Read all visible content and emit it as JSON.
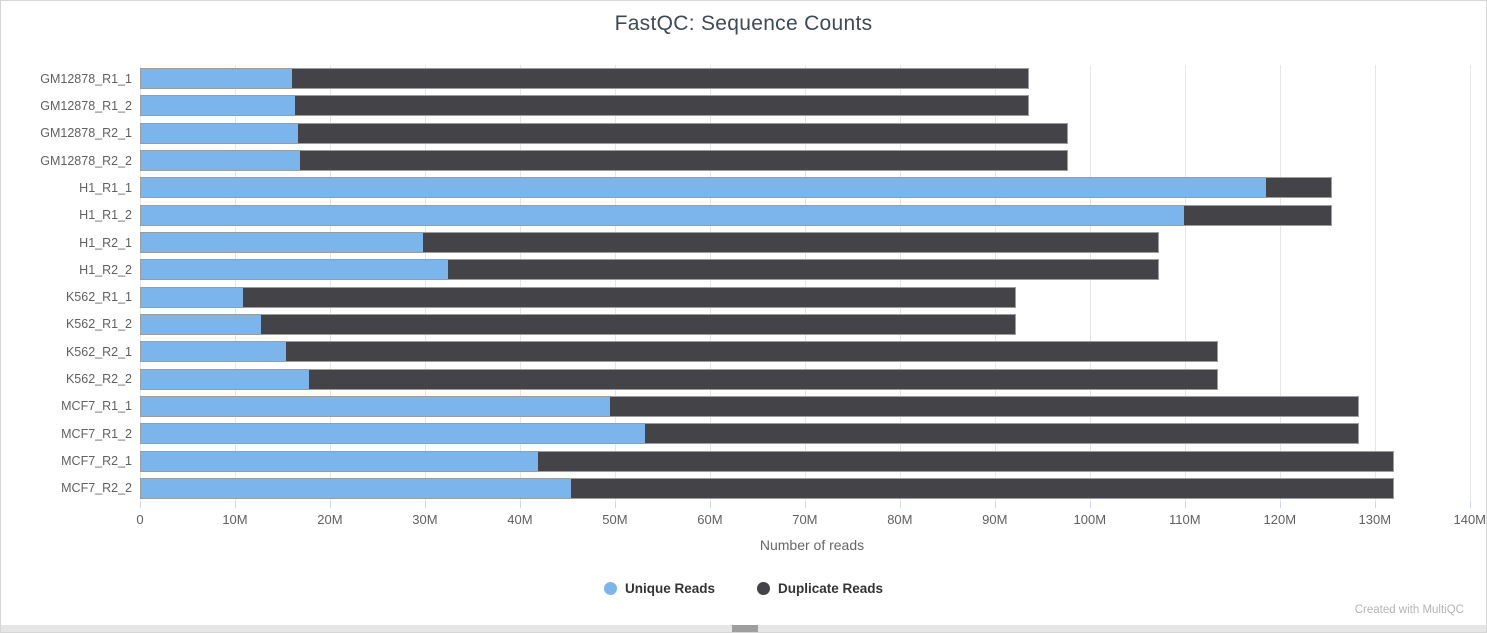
{
  "title": "FastQC: Sequence Counts",
  "credit": "Created with MultiQC",
  "colors": {
    "unique_reads": "#7cb5ec",
    "duplicate_reads": "#434348",
    "grid": "#e6e6e6",
    "tick_text": "#606060",
    "title_text": "#3e4a55"
  },
  "chart_data": {
    "type": "bar",
    "orientation": "horizontal",
    "stacked": true,
    "title": "FastQC: Sequence Counts",
    "xlabel": "Number of reads",
    "unit": "millions of reads",
    "xlim": [
      0,
      141.5
    ],
    "grid": true,
    "legend_position": "bottom",
    "categories": [
      "GM12878_R1_1",
      "GM12878_R1_2",
      "GM12878_R2_1",
      "GM12878_R2_2",
      "H1_R1_1",
      "H1_R1_2",
      "H1_R2_1",
      "H1_R2_2",
      "K562_R1_1",
      "K562_R1_2",
      "K562_R2_1",
      "K562_R2_2",
      "MCF7_R1_1",
      "MCF7_R1_2",
      "MCF7_R2_1",
      "MCF7_R2_2"
    ],
    "series": [
      {
        "name": "Unique Reads",
        "color": "#7cb5ec",
        "values": [
          15.9,
          16.3,
          16.6,
          16.8,
          118.6,
          110.0,
          29.7,
          32.4,
          10.8,
          12.7,
          15.3,
          17.7,
          49.5,
          53.2,
          41.9,
          45.3
        ]
      },
      {
        "name": "Duplicate Reads",
        "color": "#434348",
        "values": [
          77.7,
          77.3,
          81.1,
          80.9,
          6.9,
          15.5,
          77.6,
          74.9,
          81.4,
          79.5,
          98.2,
          95.8,
          78.8,
          75.1,
          90.1,
          86.7
        ]
      }
    ],
    "xticks": [
      {
        "value": 0,
        "label": "0"
      },
      {
        "value": 10,
        "label": "10M"
      },
      {
        "value": 20,
        "label": "20M"
      },
      {
        "value": 30,
        "label": "30M"
      },
      {
        "value": 40,
        "label": "40M"
      },
      {
        "value": 50,
        "label": "50M"
      },
      {
        "value": 60,
        "label": "60M"
      },
      {
        "value": 70,
        "label": "70M"
      },
      {
        "value": 80,
        "label": "80M"
      },
      {
        "value": 90,
        "label": "90M"
      },
      {
        "value": 100,
        "label": "100M"
      },
      {
        "value": 110,
        "label": "110M"
      },
      {
        "value": 120,
        "label": "120M"
      },
      {
        "value": 130,
        "label": "130M"
      },
      {
        "value": 140,
        "label": "140M"
      }
    ]
  }
}
